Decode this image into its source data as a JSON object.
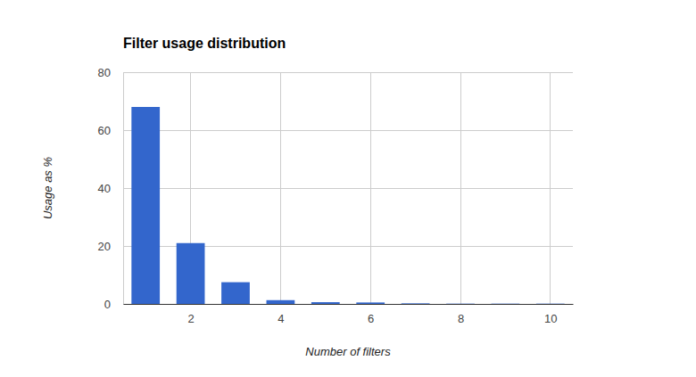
{
  "chart_data": {
    "type": "bar",
    "title": "Filter usage distribution",
    "x_label": "Number of filters",
    "y_label": "Usage as %",
    "x": [
      1,
      2,
      3,
      4,
      5,
      6,
      7,
      8,
      9,
      10
    ],
    "values": [
      68,
      21,
      7.5,
      1.3,
      0.6,
      0.5,
      0.2,
      0.1,
      0.1,
      0.1
    ],
    "color": "#3366cc",
    "xlim": [
      0.5,
      10.5
    ],
    "xticks": [
      2,
      4,
      6,
      8,
      10
    ],
    "ylim": [
      0,
      80
    ],
    "yticks": [
      0,
      20,
      40,
      60,
      80
    ],
    "grid": true
  }
}
